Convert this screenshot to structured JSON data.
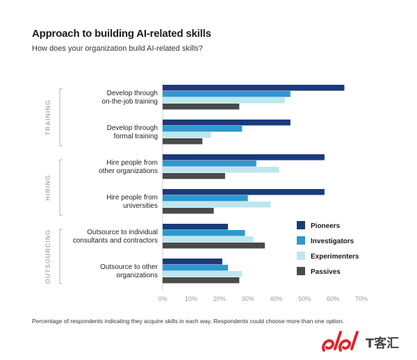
{
  "header": {
    "title": "Approach to building AI-related skills",
    "subtitle": "How does your organization build AI-related skills?"
  },
  "footnote": "Percentage of respondents indicating they acquire skills in each way. Respondents could choose more than one option.",
  "watermark": {
    "text": "T客汇"
  },
  "colors": {
    "Pioneers": "#1a3a7a",
    "Investigators": "#2e98cf",
    "Experimenters": "#bfe6ef",
    "Passives": "#4a4a4a",
    "group_label": "#b0b0b0",
    "tick": "#999999",
    "logo_red": "#e0242b"
  },
  "chart_data": {
    "type": "bar",
    "orientation": "horizontal",
    "xlim": [
      0,
      70
    ],
    "xticks": [
      0,
      10,
      20,
      30,
      40,
      50,
      60,
      70
    ],
    "tick_suffix": "%",
    "legend_position": "right",
    "groups": [
      {
        "label": "TRAINING",
        "categories": [
          0,
          1
        ]
      },
      {
        "label": "HIRING",
        "categories": [
          2,
          3
        ]
      },
      {
        "label": "OUTSOURCING",
        "categories": [
          4,
          5
        ]
      }
    ],
    "categories": [
      [
        "Develop through",
        "on-the-job training"
      ],
      [
        "Develop through",
        "formal training"
      ],
      [
        "Hire people from",
        "other organizations"
      ],
      [
        "Hire people from",
        "universities"
      ],
      [
        "Outsource to individual",
        "consultants and contractors"
      ],
      [
        "Outsource to other",
        "organizations"
      ]
    ],
    "series": [
      {
        "name": "Pioneers",
        "values": [
          64,
          45,
          57,
          57,
          23,
          21
        ]
      },
      {
        "name": "Investigators",
        "values": [
          45,
          28,
          33,
          30,
          29,
          23
        ]
      },
      {
        "name": "Experimenters",
        "values": [
          43,
          17,
          41,
          38,
          32,
          28
        ]
      },
      {
        "name": "Passives",
        "values": [
          27,
          14,
          22,
          18,
          36,
          27
        ]
      }
    ]
  }
}
